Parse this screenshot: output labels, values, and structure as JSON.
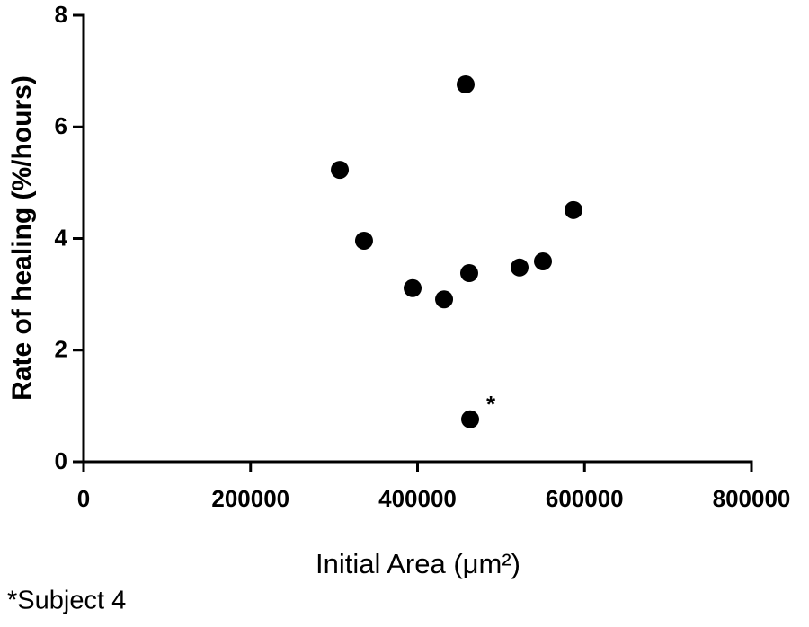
{
  "chart_data": {
    "type": "scatter",
    "x_label": "Initial Area (μm²)",
    "y_label": "Rate of healing (%/hours)",
    "annotation": "*",
    "footnote": "*Subject 4",
    "x": [
      306900,
      335900,
      394100,
      431800,
      457600,
      461900,
      522200,
      550200,
      586800,
      463000
    ],
    "values": [
      5.23,
      3.96,
      3.11,
      2.91,
      6.76,
      3.38,
      3.48,
      3.59,
      4.51,
      0.76
    ],
    "color": "#000000",
    "xlim": [
      0,
      800000
    ],
    "xticks": [
      0,
      200000,
      400000,
      600000,
      800000
    ],
    "ylim": [
      0,
      8
    ],
    "yticks": [
      0,
      2,
      4,
      6,
      8
    ]
  }
}
